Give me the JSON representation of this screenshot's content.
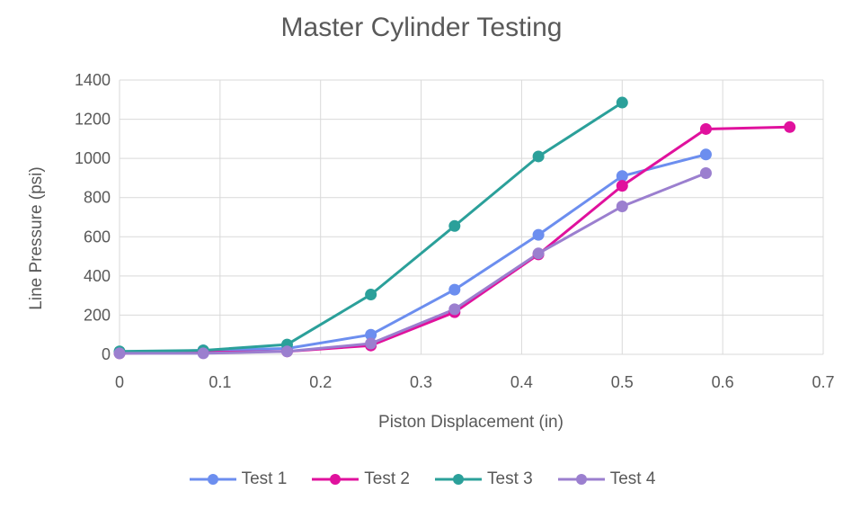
{
  "chart_data": {
    "type": "line",
    "title": "Master Cylinder Testing",
    "xlabel": "Piston Displacement (in)",
    "ylabel": "Line Pressure (psi)",
    "xlim": [
      0,
      0.7
    ],
    "ylim": [
      0,
      1400
    ],
    "xticks": [
      "0",
      "0.1",
      "0.2",
      "0.3",
      "0.4",
      "0.5",
      "0.6",
      "0.7"
    ],
    "yticks": [
      "0",
      "200",
      "400",
      "600",
      "800",
      "1000",
      "1200",
      "1400"
    ],
    "grid": true,
    "legend_position": "bottom",
    "series": [
      {
        "name": "Test 1",
        "color": "#6C8EEF",
        "x": [
          0,
          0.0833,
          0.1667,
          0.25,
          0.3333,
          0.4167,
          0.5,
          0.5833
        ],
        "y": [
          10,
          20,
          30,
          100,
          330,
          610,
          910,
          1020
        ]
      },
      {
        "name": "Test 2",
        "color": "#E0119D",
        "x": [
          0,
          0.0833,
          0.1667,
          0.25,
          0.3333,
          0.4167,
          0.5,
          0.5833,
          0.6667
        ],
        "y": [
          5,
          10,
          15,
          45,
          215,
          510,
          860,
          1150,
          1160
        ]
      },
      {
        "name": "Test 3",
        "color": "#2BA09A",
        "x": [
          0,
          0.0833,
          0.1667,
          0.25,
          0.3333,
          0.4167,
          0.5
        ],
        "y": [
          15,
          20,
          50,
          305,
          655,
          1010,
          1285
        ]
      },
      {
        "name": "Test 4",
        "color": "#9B7FCF",
        "x": [
          0,
          0.0833,
          0.1667,
          0.25,
          0.3333,
          0.4167,
          0.5,
          0.5833
        ],
        "y": [
          5,
          5,
          15,
          55,
          230,
          515,
          755,
          925
        ]
      }
    ]
  }
}
